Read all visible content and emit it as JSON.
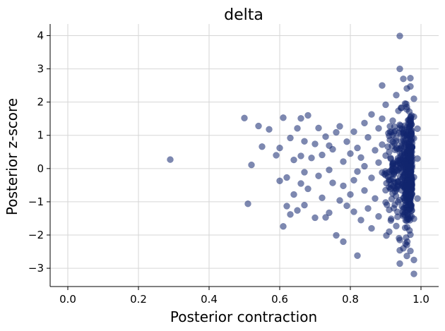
{
  "chart_data": {
    "type": "scatter",
    "title": "delta",
    "xlabel": "Posterior contraction",
    "ylabel": "Posterior z-score",
    "xlim": [
      -0.05,
      1.05
    ],
    "ylim": [
      -3.55,
      4.35
    ],
    "xticks": [
      0.0,
      0.2,
      0.4,
      0.6,
      0.8,
      1.0
    ],
    "xtick_labels": [
      "0.0",
      "0.2",
      "0.4",
      "0.6",
      "0.8",
      "1.0"
    ],
    "yticks": [
      -3,
      -2,
      -1,
      0,
      1,
      2,
      3,
      4
    ],
    "ytick_labels": [
      "−3",
      "−2",
      "−1",
      "0",
      "1",
      "2",
      "3",
      "4"
    ],
    "grid": true,
    "color": "#132670",
    "alpha": 0.55,
    "points": [
      [
        0.29,
        0.27
      ],
      [
        0.5,
        1.52
      ],
      [
        0.51,
        -1.06
      ],
      [
        0.52,
        0.11
      ],
      [
        0.54,
        1.28
      ],
      [
        0.55,
        0.66
      ],
      [
        0.57,
        1.18
      ],
      [
        0.59,
        0.4
      ],
      [
        0.6,
        -0.37
      ],
      [
        0.6,
        0.62
      ],
      [
        0.61,
        -1.74
      ],
      [
        0.61,
        1.53
      ],
      [
        0.62,
        -1.13
      ],
      [
        0.62,
        -0.27
      ],
      [
        0.63,
        -1.38
      ],
      [
        0.63,
        0.92
      ],
      [
        0.64,
        0.26
      ],
      [
        0.64,
        -0.78
      ],
      [
        0.65,
        1.21
      ],
      [
        0.65,
        -1.26
      ],
      [
        0.66,
        0.38
      ],
      [
        0.66,
        -0.45
      ],
      [
        0.66,
        1.51
      ],
      [
        0.67,
        -1.1
      ],
      [
        0.67,
        0.82
      ],
      [
        0.67,
        -0.11
      ],
      [
        0.68,
        1.6
      ],
      [
        0.68,
        -0.61
      ],
      [
        0.69,
        0.32
      ],
      [
        0.7,
        -1.48
      ],
      [
        0.7,
        0.74
      ],
      [
        0.71,
        -0.22
      ],
      [
        0.71,
        1.22
      ],
      [
        0.72,
        -0.88
      ],
      [
        0.72,
        0.41
      ],
      [
        0.73,
        -1.47
      ],
      [
        0.73,
        0.96
      ],
      [
        0.74,
        -0.04
      ],
      [
        0.74,
        0.69
      ],
      [
        0.74,
        -1.33
      ],
      [
        0.75,
        0.58
      ],
      [
        0.75,
        -0.43
      ],
      [
        0.76,
        -2.01
      ],
      [
        0.76,
        1.09
      ],
      [
        0.77,
        -0.96
      ],
      [
        0.77,
        1.27
      ],
      [
        0.78,
        -2.2
      ],
      [
        0.78,
        0.21
      ],
      [
        0.78,
        -0.52
      ],
      [
        0.79,
        0.81
      ],
      [
        0.79,
        -1.12
      ],
      [
        0.8,
        0.45
      ],
      [
        0.8,
        -0.78
      ],
      [
        0.81,
        -0.35
      ],
      [
        0.81,
        1.11
      ],
      [
        0.81,
        -1.3
      ],
      [
        0.82,
        -2.62
      ],
      [
        0.82,
        0.62
      ],
      [
        0.82,
        -0.09
      ],
      [
        0.83,
        -1.55
      ],
      [
        0.83,
        0.33
      ],
      [
        0.84,
        1.37
      ],
      [
        0.84,
        -0.66
      ],
      [
        0.84,
        0.07
      ],
      [
        0.85,
        -1.2
      ],
      [
        0.85,
        0.94
      ],
      [
        0.86,
        -0.28
      ],
      [
        0.86,
        1.63
      ],
      [
        0.86,
        -1.8
      ],
      [
        0.87,
        0.55
      ],
      [
        0.87,
        -0.9
      ],
      [
        0.88,
        0.18
      ],
      [
        0.88,
        1.21
      ],
      [
        0.88,
        -1.44
      ],
      [
        0.89,
        -0.12
      ],
      [
        0.89,
        0.72
      ],
      [
        0.89,
        2.5
      ],
      [
        0.9,
        -1.02
      ],
      [
        0.9,
        0.39
      ],
      [
        0.9,
        1.92
      ],
      [
        0.91,
        -0.56
      ],
      [
        0.91,
        0.98
      ],
      [
        0.91,
        -1.9
      ],
      [
        0.92,
        0.1
      ],
      [
        0.92,
        -0.31
      ],
      [
        0.92,
        1.44
      ],
      [
        0.93,
        -1.73
      ],
      [
        0.93,
        0.63
      ],
      [
        0.93,
        2.21
      ],
      [
        0.94,
        -2.15
      ],
      [
        0.94,
        0.27
      ],
      [
        0.94,
        -2.86
      ],
      [
        0.94,
        3.99
      ],
      [
        0.94,
        3.0
      ],
      [
        0.94,
        -2.46
      ],
      [
        0.95,
        1.07
      ],
      [
        0.95,
        -1.38
      ],
      [
        0.95,
        -0.47
      ],
      [
        0.95,
        2.7
      ],
      [
        0.95,
        0.85
      ],
      [
        0.96,
        -0.05
      ],
      [
        0.96,
        1.78
      ],
      [
        0.96,
        -1.16
      ],
      [
        0.96,
        2.41
      ],
      [
        0.96,
        -2.63
      ],
      [
        0.96,
        0.49
      ],
      [
        0.97,
        -0.73
      ],
      [
        0.97,
        1.31
      ],
      [
        0.97,
        -1.99
      ],
      [
        0.97,
        2.72
      ],
      [
        0.97,
        0.16
      ],
      [
        0.97,
        -2.48
      ],
      [
        0.98,
        -3.17
      ],
      [
        0.98,
        0.91
      ],
      [
        0.98,
        -1.51
      ],
      [
        0.98,
        2.1
      ],
      [
        0.98,
        -0.26
      ],
      [
        0.98,
        -2.75
      ],
      [
        0.98,
        1.56
      ],
      [
        0.97,
        2.47
      ],
      [
        0.96,
        -2.3
      ],
      [
        0.95,
        -2.4
      ],
      [
        0.99,
        0.3
      ],
      [
        0.99,
        -0.9
      ],
      [
        0.99,
        1.2
      ],
      [
        0.93,
        -0.6
      ],
      [
        0.92,
        1.0
      ],
      [
        0.91,
        0.5
      ],
      [
        0.9,
        -0.2
      ],
      [
        0.89,
        1.5
      ]
    ]
  }
}
